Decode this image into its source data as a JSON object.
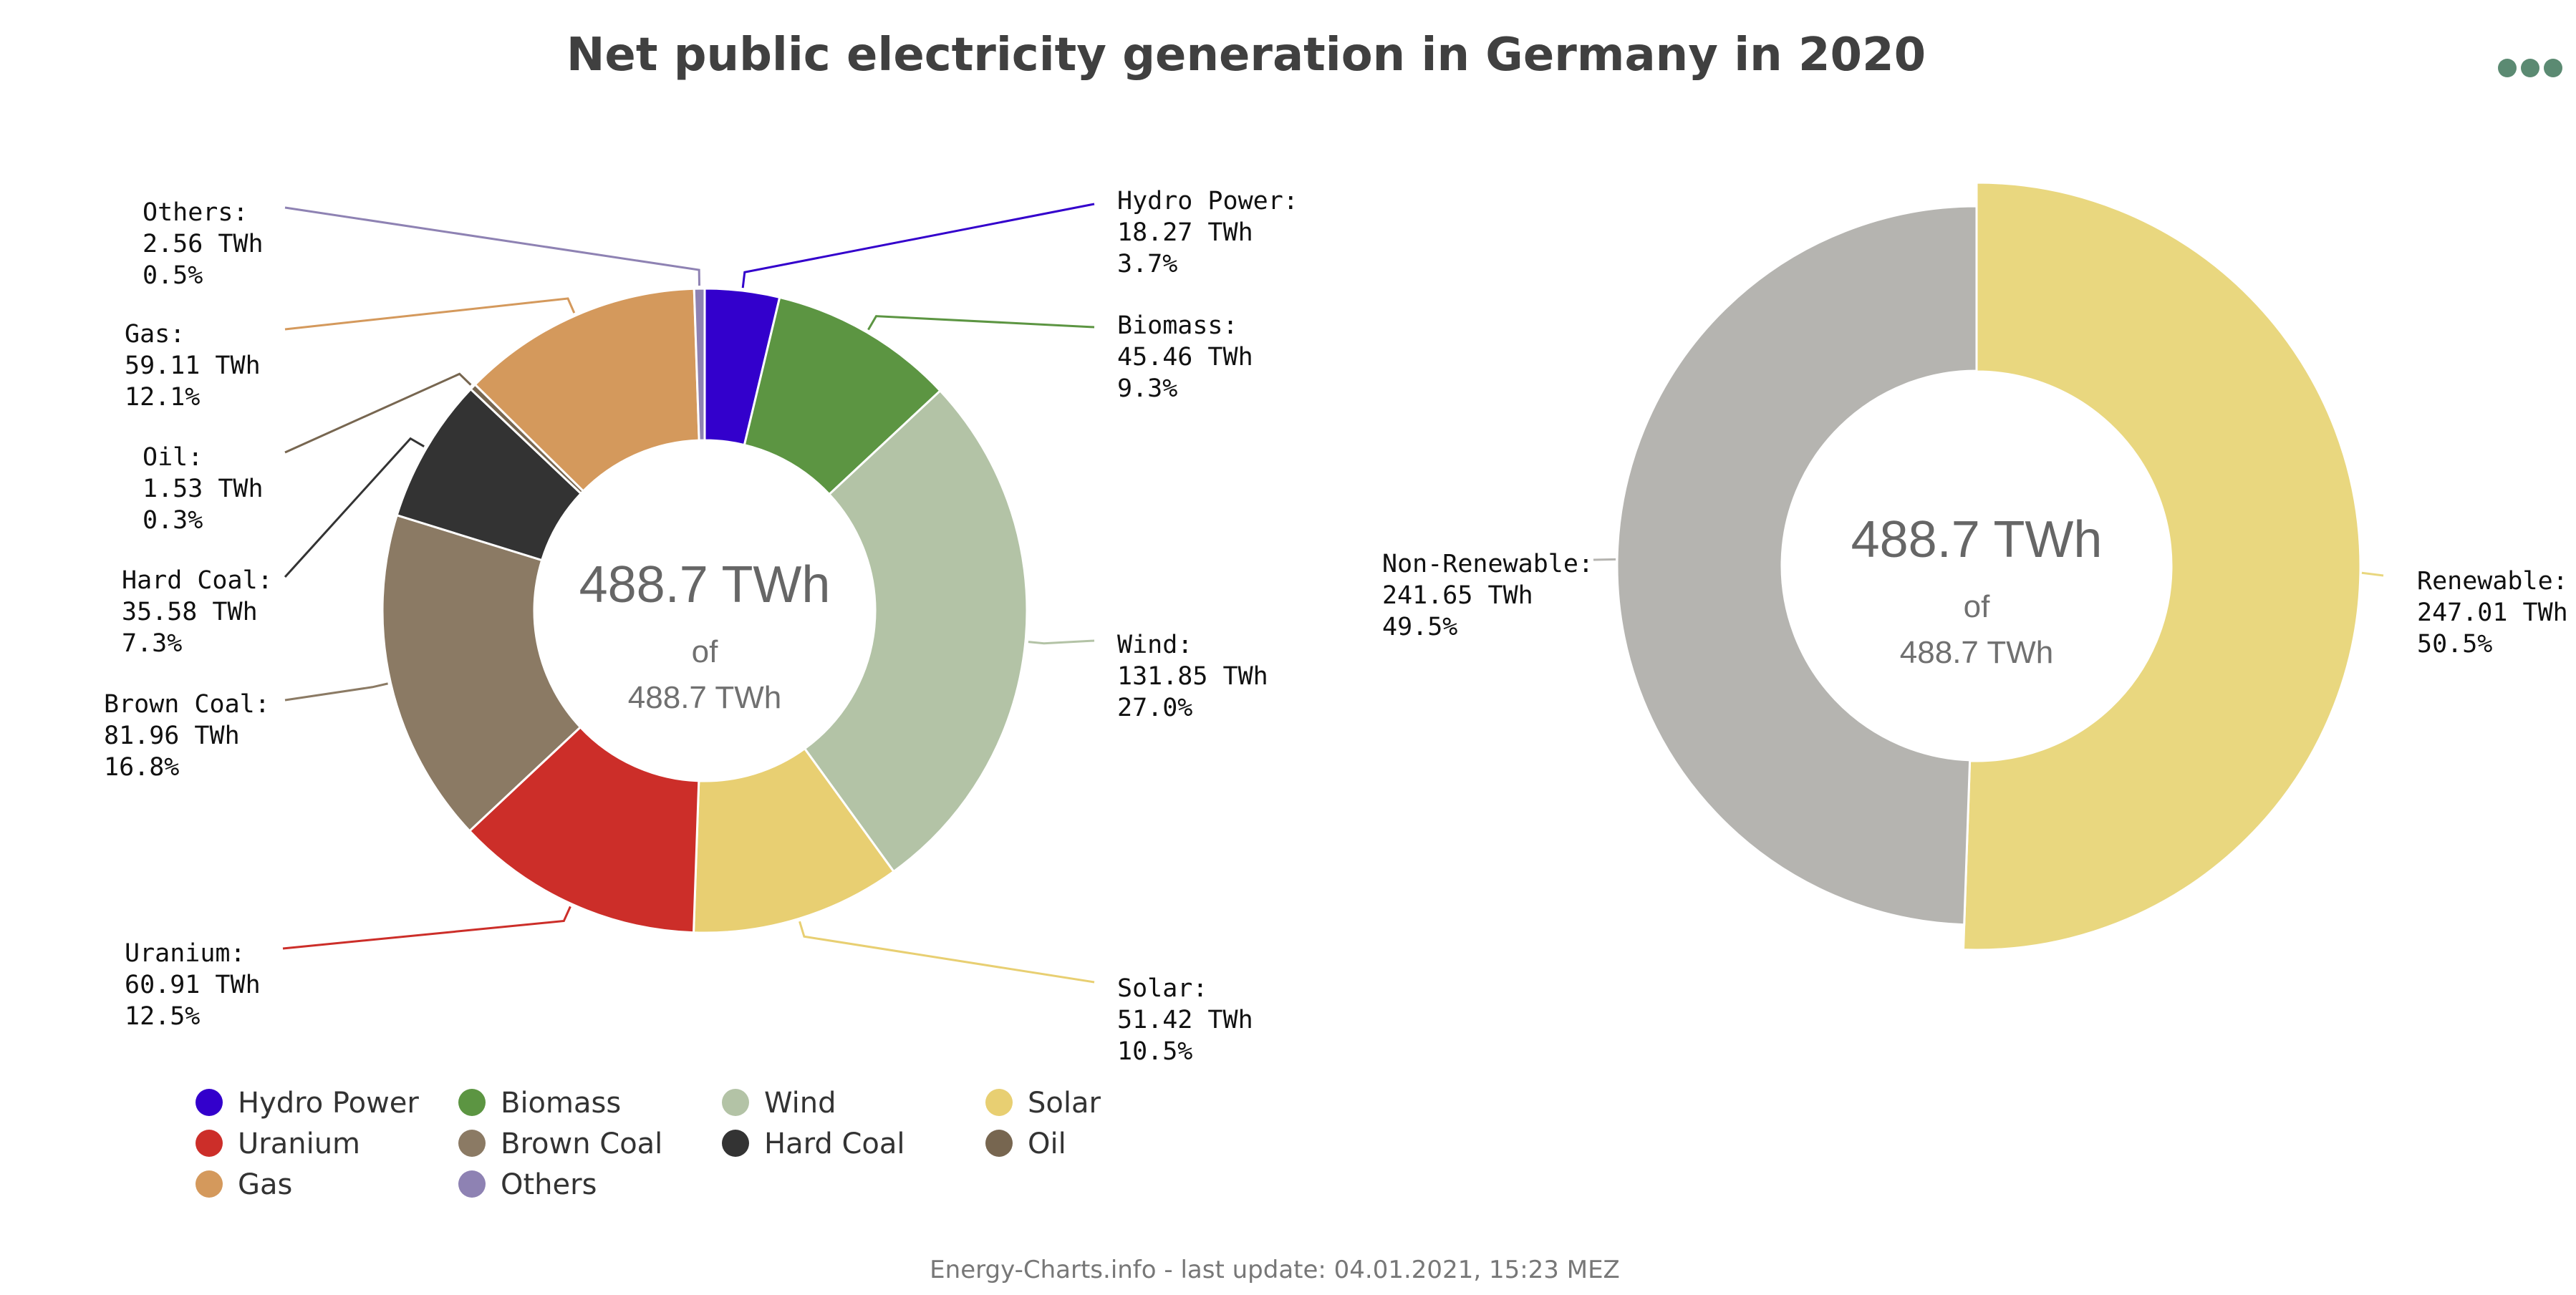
{
  "page": {
    "title": "Net public electricity generation in Germany in 2020",
    "footer": "Energy-Charts.info - last update: 04.01.2021, 15:23 MEZ"
  },
  "chart_data": [
    {
      "type": "pie",
      "variant": "donut",
      "center_total": "488.7 TWh",
      "center_of": "of",
      "center_total_sub": "488.7 TWh",
      "unit": "TWh",
      "series": [
        {
          "name": "Hydro Power",
          "value": 18.27,
          "percent": 3.7,
          "color": "#3300cc",
          "value_label": "18.27 TWh",
          "percent_label": "3.7%"
        },
        {
          "name": "Biomass",
          "value": 45.46,
          "percent": 9.3,
          "color": "#5c9542",
          "value_label": "45.46 TWh",
          "percent_label": "9.3%"
        },
        {
          "name": "Wind",
          "value": 131.85,
          "percent": 27.0,
          "color": "#b3c3a6",
          "value_label": "131.85 TWh",
          "percent_label": "27.0%"
        },
        {
          "name": "Solar",
          "value": 51.42,
          "percent": 10.5,
          "color": "#e8cf72",
          "value_label": "51.42 TWh",
          "percent_label": "10.5%"
        },
        {
          "name": "Uranium",
          "value": 60.91,
          "percent": 12.5,
          "color": "#cc2e29",
          "value_label": "60.91 TWh",
          "percent_label": "12.5%"
        },
        {
          "name": "Brown Coal",
          "value": 81.96,
          "percent": 16.8,
          "color": "#8b7a64",
          "value_label": "81.96 TWh",
          "percent_label": "16.8%"
        },
        {
          "name": "Hard Coal",
          "value": 35.58,
          "percent": 7.3,
          "color": "#333333",
          "value_label": "35.58 TWh",
          "percent_label": "7.3%"
        },
        {
          "name": "Oil",
          "value": 1.53,
          "percent": 0.3,
          "color": "#776650",
          "value_label": "1.53 TWh",
          "percent_label": "0.3%"
        },
        {
          "name": "Gas",
          "value": 59.11,
          "percent": 12.1,
          "color": "#d4995c",
          "value_label": "59.11 TWh",
          "percent_label": "12.1%"
        },
        {
          "name": "Others",
          "value": 2.56,
          "percent": 0.5,
          "color": "#8e82b3",
          "value_label": "2.56 TWh",
          "percent_label": "0.5%"
        }
      ],
      "legend": [
        "Hydro Power",
        "Biomass",
        "Wind",
        "Solar",
        "Uranium",
        "Brown Coal",
        "Hard Coal",
        "Oil",
        "Gas",
        "Others"
      ],
      "legend_position": "bottom"
    },
    {
      "type": "pie",
      "variant": "donut",
      "center_total": "488.7 TWh",
      "center_of": "of",
      "center_total_sub": "488.7 TWh",
      "unit": "TWh",
      "series": [
        {
          "name": "Renewable",
          "value": 247.01,
          "percent": 50.5,
          "color": "#e9d77f",
          "value_label": "247.01 TWh",
          "percent_label": "50.5%",
          "highlighted": true
        },
        {
          "name": "Non-Renewable",
          "value": 241.65,
          "percent": 49.5,
          "color": "#b5b4b0",
          "value_label": "241.65 TWh",
          "percent_label": "49.5%"
        }
      ]
    }
  ],
  "icons": {
    "menu": "more-dots-icon"
  }
}
